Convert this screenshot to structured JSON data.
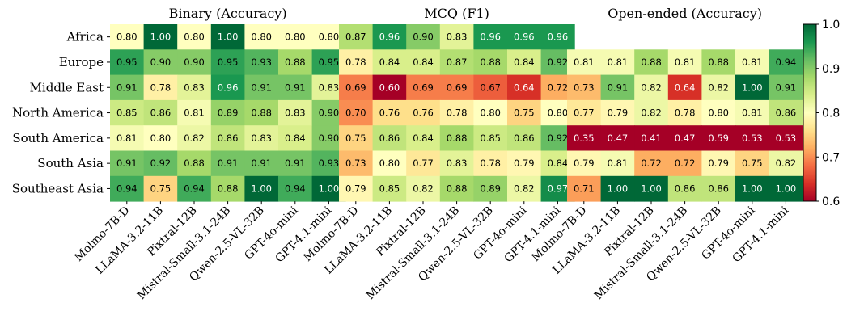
{
  "chart_data": {
    "type": "heatmap",
    "rows": [
      "Africa",
      "Europe",
      "Middle East",
      "North America",
      "South America",
      "South Asia",
      "Southeast Asia"
    ],
    "columns": [
      "Molmo-7B-D",
      "LLaMA-3.2-11B",
      "Pixtral-12B",
      "Mistral-Small-3.1-24B",
      "Qwen-2.5-VL-32B",
      "GPT-4o-mini",
      "GPT-4.1-mini"
    ],
    "panels": [
      {
        "title": "Binary (Accuracy)",
        "values": [
          [
            0.8,
            1.0,
            0.8,
            1.0,
            0.8,
            0.8,
            0.8
          ],
          [
            0.95,
            0.9,
            0.9,
            0.95,
            0.93,
            0.88,
            0.95
          ],
          [
            0.91,
            0.78,
            0.83,
            0.96,
            0.91,
            0.91,
            0.83
          ],
          [
            0.85,
            0.86,
            0.81,
            0.89,
            0.88,
            0.83,
            0.9
          ],
          [
            0.81,
            0.8,
            0.82,
            0.86,
            0.83,
            0.84,
            0.9
          ],
          [
            0.91,
            0.92,
            0.88,
            0.91,
            0.91,
            0.91,
            0.93
          ],
          [
            0.94,
            0.75,
            0.94,
            0.88,
            1.0,
            0.94,
            1.0
          ]
        ]
      },
      {
        "title": "MCQ (F1)",
        "values": [
          [
            0.87,
            0.96,
            0.9,
            0.83,
            0.96,
            0.96,
            0.96
          ],
          [
            0.78,
            0.84,
            0.84,
            0.87,
            0.88,
            0.84,
            0.92
          ],
          [
            0.69,
            0.6,
            0.69,
            0.69,
            0.67,
            0.64,
            0.72
          ],
          [
            0.7,
            0.76,
            0.76,
            0.78,
            0.8,
            0.75,
            0.8
          ],
          [
            0.75,
            0.86,
            0.84,
            0.88,
            0.85,
            0.86,
            0.92
          ],
          [
            0.73,
            0.8,
            0.77,
            0.83,
            0.78,
            0.79,
            0.84
          ],
          [
            0.79,
            0.85,
            0.82,
            0.88,
            0.89,
            0.82,
            0.97
          ]
        ]
      },
      {
        "title": "Open-ended (Accuracy)",
        "values": [
          [
            null,
            null,
            null,
            null,
            null,
            null,
            null
          ],
          [
            0.81,
            0.81,
            0.88,
            0.81,
            0.88,
            0.81,
            0.94
          ],
          [
            0.73,
            0.91,
            0.82,
            0.64,
            0.82,
            1.0,
            0.91
          ],
          [
            0.77,
            0.79,
            0.82,
            0.78,
            0.8,
            0.81,
            0.86
          ],
          [
            0.35,
            0.47,
            0.41,
            0.47,
            0.59,
            0.53,
            0.53
          ],
          [
            0.79,
            0.81,
            0.72,
            0.72,
            0.79,
            0.75,
            0.82
          ],
          [
            0.71,
            1.0,
            1.0,
            0.86,
            0.86,
            1.0,
            1.0
          ]
        ]
      }
    ],
    "colorbar": {
      "colormap": "RdYlGn",
      "vmin": 0.6,
      "vmax": 1.0,
      "ticks": [
        0.6,
        0.7,
        0.8,
        0.9,
        1.0
      ],
      "tick_labels": [
        "0.6",
        "0.7",
        "0.8",
        "0.9",
        "1.0"
      ]
    }
  }
}
